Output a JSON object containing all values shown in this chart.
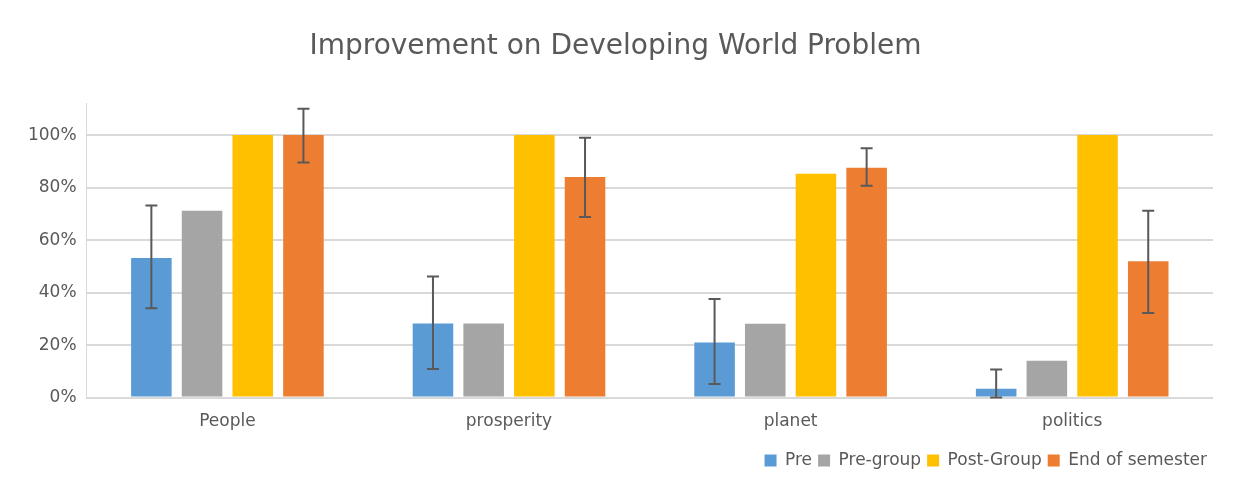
{
  "chart_data": {
    "type": "bar",
    "title": "Improvement on Developing World Problem",
    "categories": [
      "People",
      "prosperity",
      "planet",
      "politics"
    ],
    "series": [
      {
        "name": "Pre",
        "color": "#5b9bd5",
        "values": [
          53.2,
          28.2,
          21,
          3.4
        ],
        "errors": [
          [
            34,
            73.2
          ],
          [
            10.9,
            46.1
          ],
          [
            5.2,
            37.6
          ],
          [
            0,
            10.7
          ]
        ]
      },
      {
        "name": "Pre-group",
        "color": "#a5a5a5",
        "values": [
          71.2,
          28.2,
          28.1,
          14
        ]
      },
      {
        "name": "Post-Group",
        "color": "#ffc000",
        "values": [
          100,
          100,
          85.3,
          100
        ]
      },
      {
        "name": "End of semester",
        "color": "#ed7d31",
        "values": [
          100,
          84,
          87.6,
          51.9
        ],
        "errors": [
          [
            89.6,
            110
          ],
          [
            68.8,
            99
          ],
          [
            80.7,
            95
          ],
          [
            32.2,
            71.2
          ]
        ]
      }
    ],
    "ylim": [
      0,
      112
    ],
    "yticks": [
      {
        "value": 0,
        "label": "0%"
      },
      {
        "value": 20,
        "label": "20%"
      },
      {
        "value": 40,
        "label": "40%"
      },
      {
        "value": 60,
        "label": "60%"
      },
      {
        "value": 80,
        "label": "80%"
      },
      {
        "value": 100,
        "label": "100%"
      }
    ],
    "grid": "y",
    "legend": "bottom right"
  }
}
